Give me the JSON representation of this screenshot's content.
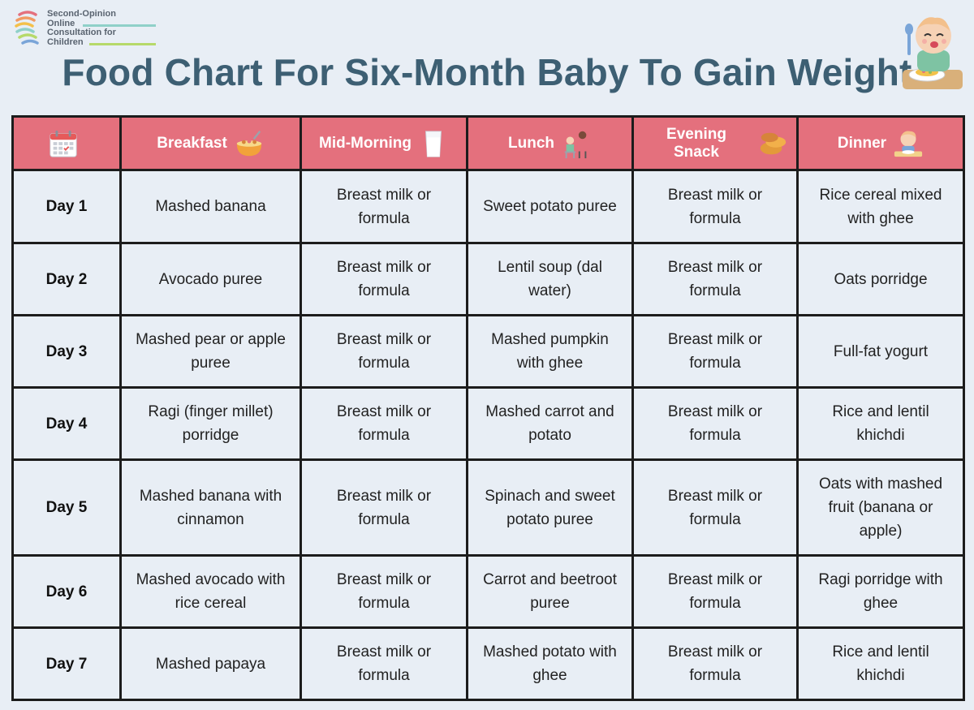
{
  "logo": {
    "lines": [
      "Second-Opinion",
      "Online",
      "Consultation for",
      "Children"
    ]
  },
  "title": "Food Chart For Six-Month Baby To Gain Weight",
  "colors": {
    "header_bg": "#e4707d",
    "header_text": "#ffffff",
    "title": "#3d5f73",
    "page_bg": "#e8eef5"
  },
  "table": {
    "columns": [
      {
        "label": "",
        "icon": "calendar-icon"
      },
      {
        "label": "Breakfast",
        "icon": "cereal-bowl-icon"
      },
      {
        "label": "Mid-Morning",
        "icon": "milk-glass-icon"
      },
      {
        "label": "Lunch",
        "icon": "feeding-mother-icon"
      },
      {
        "label": "Evening Snack",
        "icon": "snack-cookies-icon"
      },
      {
        "label": "Dinner",
        "icon": "baby-eating-icon"
      }
    ],
    "rows": [
      {
        "day": "Day 1",
        "breakfast": "Mashed banana",
        "mid_morning": "Breast milk or formula",
        "lunch": "Sweet potato puree",
        "evening_snack": "Breast milk or formula",
        "dinner": "Rice cereal mixed with ghee"
      },
      {
        "day": "Day 2",
        "breakfast": "Avocado puree",
        "mid_morning": "Breast milk or formula",
        "lunch": "Lentil soup (dal water)",
        "evening_snack": "Breast milk or formula",
        "dinner": "Oats porridge"
      },
      {
        "day": "Day 3",
        "breakfast": "Mashed pear or apple puree",
        "mid_morning": "Breast milk or formula",
        "lunch": "Mashed pumpkin with ghee",
        "evening_snack": "Breast milk or formula",
        "dinner": "Full-fat yogurt"
      },
      {
        "day": "Day 4",
        "breakfast": "Ragi (finger millet) porridge",
        "mid_morning": "Breast milk or formula",
        "lunch": "Mashed carrot and potato",
        "evening_snack": "Breast milk or formula",
        "dinner": "Rice and lentil khichdi"
      },
      {
        "day": "Day 5",
        "breakfast": "Mashed banana with cinnamon",
        "mid_morning": "Breast milk or formula",
        "lunch": "Spinach and sweet potato puree",
        "evening_snack": "Breast milk or formula",
        "dinner": "Oats with mashed fruit (banana or apple)"
      },
      {
        "day": "Day 6",
        "breakfast": "Mashed avocado with rice cereal",
        "mid_morning": "Breast milk or formula",
        "lunch": "Carrot and beetroot puree",
        "evening_snack": "Breast milk or formula",
        "dinner": "Ragi porridge with ghee"
      },
      {
        "day": "Day 7",
        "breakfast": "Mashed papaya",
        "mid_morning": "Breast milk or formula",
        "lunch": "Mashed potato with ghee",
        "evening_snack": "Breast milk or formula",
        "dinner": "Rice and lentil khichdi"
      }
    ]
  }
}
